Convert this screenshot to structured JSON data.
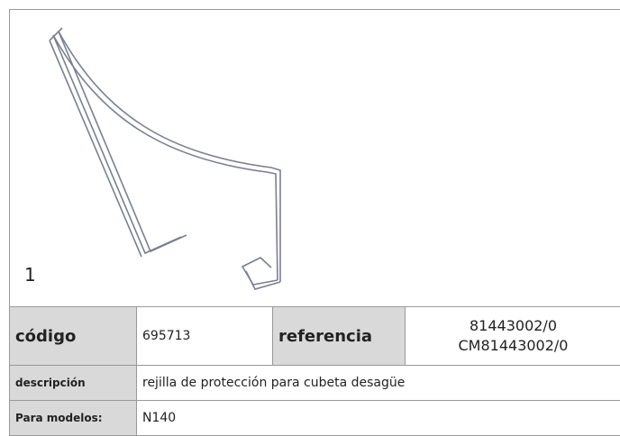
{
  "figure": {
    "label": "1"
  },
  "table": {
    "rows": [
      [
        "código",
        "695713",
        "referencia",
        [
          "81443002/0",
          "CM81443002/0"
        ]
      ],
      [
        "descripción",
        "rejilla de protección  para cubeta desagüe"
      ],
      [
        "Para modelos:",
        "N140"
      ]
    ]
  }
}
